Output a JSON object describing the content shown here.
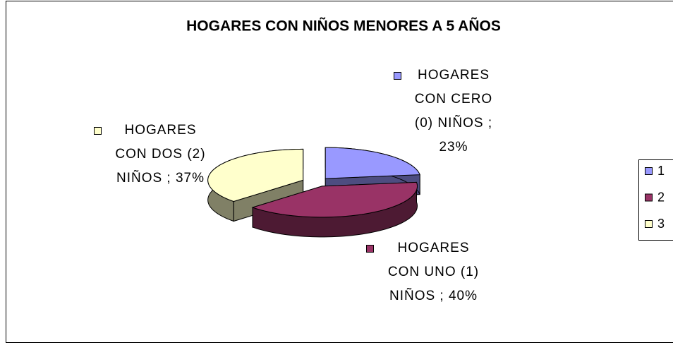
{
  "chart_data": {
    "type": "pie",
    "title": "HOGARES CON NIÑOS MENORES A 5 AÑOS",
    "categories": [
      "1",
      "2",
      "3"
    ],
    "values": [
      23,
      40,
      37
    ],
    "value_labels": [
      "HOGARES CON CERO (0) NIÑOS ; 23%",
      "HOGARES CON UNO (1) NIÑOS ; 40%",
      "HOGARES CON DOS (2) NIÑOS ; 37%"
    ],
    "colors": [
      "#9999ff",
      "#993366",
      "#ffffcc"
    ],
    "legend": "right",
    "three_d": true,
    "exploded": true
  }
}
